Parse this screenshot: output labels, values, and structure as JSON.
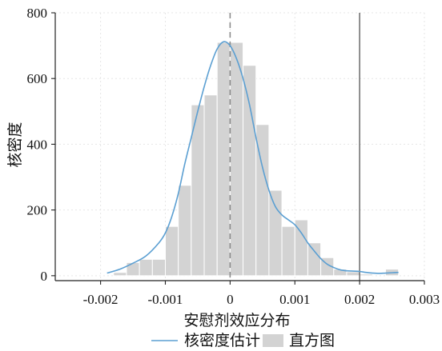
{
  "chart_data": {
    "type": "bar",
    "title": "",
    "xlabel": "安慰剂效应分布",
    "ylabel": "核密度",
    "xlim": [
      -0.0027,
      0.003
    ],
    "ylim": [
      -15,
      800
    ],
    "xticks": [
      -0.002,
      -0.001,
      0,
      0.001,
      0.002,
      0.003
    ],
    "xtick_labels": [
      "-0.002",
      "-0.001",
      "0",
      "0.001",
      "0.002",
      "0.003"
    ],
    "yticks": [
      0,
      200,
      400,
      600,
      800
    ],
    "ytick_labels": [
      "0",
      "200",
      "400",
      "600",
      "800"
    ],
    "grid": true,
    "legend_position": "bottom",
    "colors": {
      "histogram": "#d3d3d3",
      "histogram_edge": "#ffffff",
      "kde": "#5b9fd2",
      "zero_line": "#8c8c8c",
      "true_value_line": "#555555"
    },
    "series": [
      {
        "name": "直方图",
        "type": "histogram",
        "bin_edges": [
          -0.0018,
          -0.0016,
          -0.0014,
          -0.0012,
          -0.001,
          -0.0008,
          -0.0006,
          -0.0004,
          -0.0002,
          0,
          0.0002,
          0.0004,
          0.0006,
          0.0008,
          0.001,
          0.0012,
          0.0014,
          0.0016,
          0.0018,
          0.002,
          0.0022,
          0.0024,
          0.0026
        ],
        "values": [
          10,
          40,
          50,
          50,
          150,
          275,
          520,
          550,
          710,
          710,
          640,
          460,
          260,
          150,
          170,
          100,
          55,
          20,
          12,
          5,
          0,
          20
        ]
      },
      {
        "name": "核密度估计",
        "type": "line",
        "x": [
          -0.0019,
          -0.0017,
          -0.0015,
          -0.0013,
          -0.0011,
          -0.001,
          -0.0009,
          -0.0008,
          -0.0007,
          -0.0006,
          -0.0005,
          -0.0004,
          -0.0003,
          -0.0002,
          -0.0001,
          0,
          0.0001,
          0.0002,
          0.0003,
          0.0004,
          0.0005,
          0.0006,
          0.0007,
          0.0008,
          0.0009,
          0.001,
          0.0011,
          0.0012,
          0.0013,
          0.0014,
          0.0015,
          0.0016,
          0.0017,
          0.0018,
          0.0019,
          0.002,
          0.0021,
          0.0022,
          0.0023,
          0.0024,
          0.0025,
          0.0026
        ],
        "values": [
          8,
          20,
          38,
          60,
          100,
          130,
          180,
          250,
          340,
          420,
          500,
          575,
          640,
          690,
          712,
          700,
          660,
          600,
          520,
          420,
          330,
          260,
          210,
          185,
          170,
          155,
          130,
          100,
          75,
          52,
          35,
          25,
          18,
          15,
          14,
          13,
          10,
          8,
          7,
          8,
          9,
          10
        ]
      }
    ],
    "reference_lines": [
      {
        "orientation": "vertical",
        "x": 0,
        "style": "dashed"
      },
      {
        "orientation": "vertical",
        "x": 0.002,
        "style": "solid"
      }
    ],
    "legend": [
      {
        "label": "核密度估计",
        "marker": "line"
      },
      {
        "label": "直方图",
        "marker": "patch"
      }
    ]
  }
}
